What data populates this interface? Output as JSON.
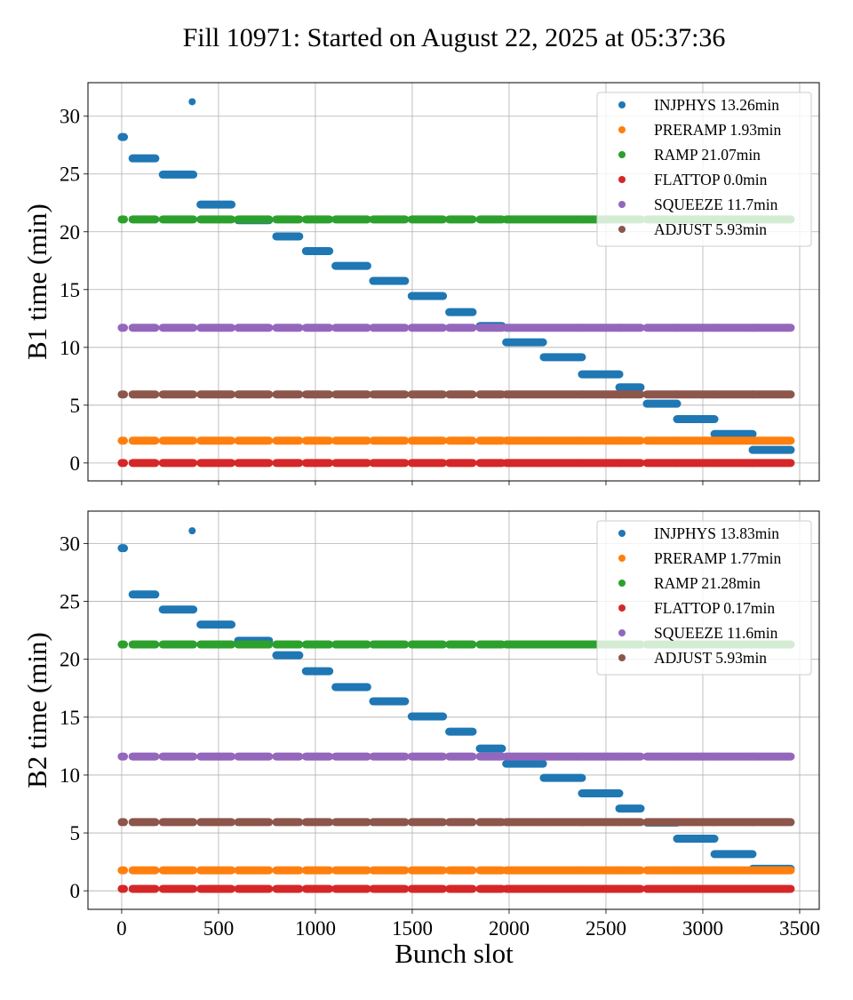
{
  "figure": {
    "title": "Fill 10971: Started on August 22, 2025 at 05:37:36",
    "xlabel": "Bunch slot"
  },
  "chart_data": [
    {
      "type": "scatter",
      "ylabel": "B1 time (min)",
      "xlim": [
        -174,
        3601
      ],
      "ylim": [
        -1.55,
        32.9
      ],
      "xticks": [
        0,
        500,
        1000,
        1500,
        2000,
        2500,
        3000,
        3500
      ],
      "yticks": [
        0,
        5,
        10,
        15,
        20,
        25,
        30
      ],
      "show_xtick_labels": false,
      "grid": true,
      "legend_placement": "upper-right",
      "bunch_trains": [
        [
          0,
          12
        ],
        [
          56,
          174
        ],
        [
          212,
          370
        ],
        [
          407,
          567
        ],
        [
          601,
          761
        ],
        [
          798,
          917
        ],
        [
          951,
          1072
        ],
        [
          1104,
          1268
        ],
        [
          1298,
          1463
        ],
        [
          1497,
          1659
        ],
        [
          1691,
          1812
        ],
        [
          1849,
          1963
        ],
        [
          1985,
          2175
        ],
        [
          2179,
          2376
        ],
        [
          2376,
          2569
        ],
        [
          2569,
          2679
        ],
        [
          2711,
          2867
        ],
        [
          2867,
          3060
        ],
        [
          3060,
          3257
        ],
        [
          3257,
          3454
        ]
      ],
      "series": [
        {
          "name": "INJPHYS 13.26min",
          "color": "#1f77b4",
          "train_values": [
            28.2,
            26.35,
            24.95,
            22.36,
            21.0,
            19.6,
            18.33,
            17.05,
            15.75,
            14.44,
            13.05,
            11.85,
            10.44,
            9.15,
            7.67,
            6.54,
            5.13,
            3.79,
            2.51,
            1.13
          ],
          "extra_points": [
            [
              364,
              31.25
            ]
          ]
        },
        {
          "name": "PRERAMP 1.93min",
          "color": "#ff7f0e",
          "value": 1.93
        },
        {
          "name": "RAMP 21.07min",
          "color": "#2ca02c",
          "value": 21.07
        },
        {
          "name": "FLATTOP 0.0min",
          "color": "#d62728",
          "value": 0.0
        },
        {
          "name": "SQUEEZE 11.7min",
          "color": "#9467bd",
          "value": 11.7
        },
        {
          "name": "ADJUST 5.93min",
          "color": "#8c564b",
          "value": 5.93
        }
      ]
    },
    {
      "type": "scatter",
      "ylabel": "B2 time (min)",
      "xlim": [
        -174,
        3601
      ],
      "ylim": [
        -1.6,
        32.8
      ],
      "xticks": [
        0,
        500,
        1000,
        1500,
        2000,
        2500,
        3000,
        3500
      ],
      "xtick_labels": [
        "0",
        "500",
        "1000",
        "1500",
        "2000",
        "2500",
        "3000",
        "3500"
      ],
      "yticks": [
        0,
        5,
        10,
        15,
        20,
        25,
        30
      ],
      "show_xtick_labels": true,
      "grid": true,
      "legend_placement": "upper-right",
      "bunch_trains": [
        [
          0,
          12
        ],
        [
          56,
          174
        ],
        [
          212,
          370
        ],
        [
          407,
          567
        ],
        [
          601,
          761
        ],
        [
          798,
          917
        ],
        [
          951,
          1072
        ],
        [
          1104,
          1268
        ],
        [
          1298,
          1463
        ],
        [
          1497,
          1659
        ],
        [
          1691,
          1812
        ],
        [
          1849,
          1963
        ],
        [
          1985,
          2175
        ],
        [
          2179,
          2376
        ],
        [
          2376,
          2569
        ],
        [
          2569,
          2679
        ],
        [
          2711,
          2867
        ],
        [
          2867,
          3060
        ],
        [
          3060,
          3257
        ],
        [
          3257,
          3454
        ]
      ],
      "series": [
        {
          "name": "INJPHYS 13.83min",
          "color": "#1f77b4",
          "train_values": [
            29.6,
            25.6,
            24.3,
            23.0,
            21.6,
            20.35,
            18.97,
            17.6,
            16.37,
            15.06,
            13.75,
            12.29,
            10.98,
            9.75,
            8.42,
            7.11,
            5.9,
            4.5,
            3.17,
            1.9
          ],
          "extra_points": [
            [
              364,
              31.1
            ]
          ]
        },
        {
          "name": "PRERAMP 1.77min",
          "color": "#ff7f0e",
          "value": 1.77
        },
        {
          "name": "RAMP 21.28min",
          "color": "#2ca02c",
          "value": 21.28
        },
        {
          "name": "FLATTOP 0.17min",
          "color": "#d62728",
          "value": 0.17
        },
        {
          "name": "SQUEEZE 11.6min",
          "color": "#9467bd",
          "value": 11.6
        },
        {
          "name": "ADJUST 5.93min",
          "color": "#8c564b",
          "value": 5.93
        }
      ]
    }
  ]
}
